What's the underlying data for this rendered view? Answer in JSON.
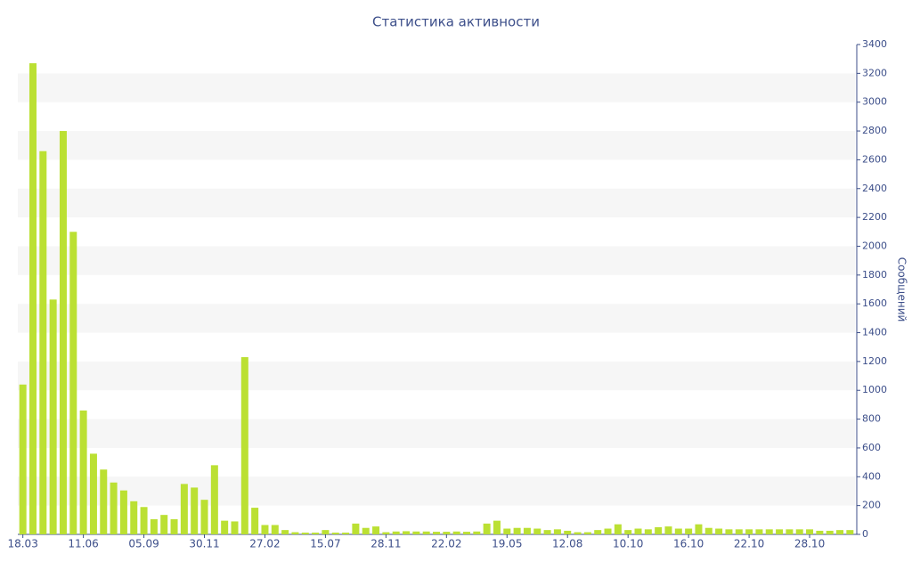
{
  "chart_data": {
    "type": "bar",
    "title": "Статистика активности",
    "y_axis_label": "Сообщений",
    "color": "#bbe033",
    "categories": [
      "18.03",
      null,
      null,
      null,
      null,
      null,
      "11.06",
      null,
      null,
      null,
      null,
      null,
      "05.09",
      null,
      null,
      null,
      null,
      null,
      "30.11",
      null,
      null,
      null,
      null,
      null,
      "27.02",
      null,
      null,
      null,
      null,
      null,
      "15.07",
      null,
      null,
      null,
      null,
      null,
      "28.11",
      null,
      null,
      null,
      null,
      null,
      "22.02",
      null,
      null,
      null,
      null,
      null,
      "19.05",
      null,
      null,
      null,
      null,
      null,
      "12.08",
      null,
      null,
      null,
      null,
      null,
      "10.10",
      null,
      null,
      null,
      null,
      null,
      "16.10",
      null,
      null,
      null,
      null,
      null,
      "22.10",
      null,
      null,
      null,
      null,
      null,
      "28.10",
      null,
      null,
      null,
      null
    ],
    "values": [
      1040,
      3270,
      2660,
      1630,
      2800,
      2100,
      860,
      560,
      450,
      360,
      305,
      230,
      190,
      105,
      135,
      105,
      350,
      325,
      240,
      480,
      95,
      90,
      1230,
      185,
      65,
      65,
      30,
      15,
      12,
      12,
      30,
      12,
      12,
      75,
      45,
      55,
      15,
      20,
      22,
      20,
      20,
      18,
      18,
      20,
      18,
      20,
      75,
      95,
      40,
      45,
      45,
      40,
      30,
      35,
      25,
      15,
      15,
      30,
      40,
      70,
      30,
      40,
      35,
      50,
      55,
      40,
      40,
      70,
      45,
      40,
      35,
      35,
      35,
      35,
      35,
      35,
      35,
      35,
      35,
      25,
      25,
      30,
      30
    ],
    "ylim": [
      0,
      3400
    ],
    "yticks": [
      0,
      200,
      400,
      600,
      800,
      1000,
      1200,
      1400,
      1600,
      1800,
      2000,
      2200,
      2400,
      2600,
      2800,
      3000,
      3200,
      3400
    ],
    "grid": true
  }
}
